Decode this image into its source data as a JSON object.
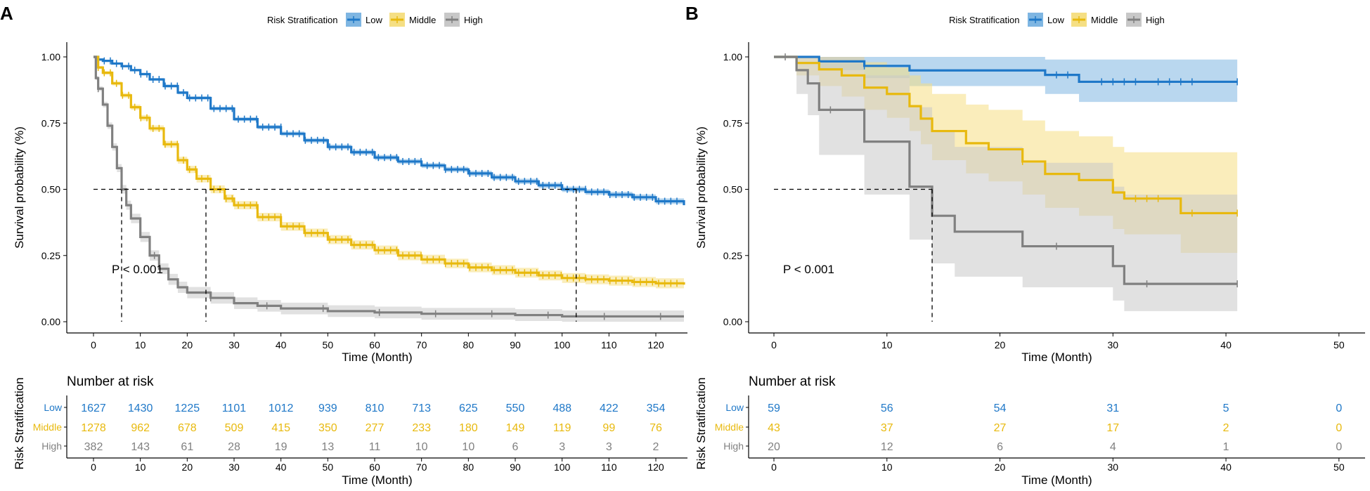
{
  "figure": {
    "legend_title": "Risk Stratification",
    "colors": {
      "Low": "#1f78c8",
      "Middle": "#e8b90e",
      "High": "#808080"
    },
    "ci_colors": {
      "Low": "#7fb6e2",
      "Middle": "#f5df84",
      "High": "#c8c8c8"
    }
  },
  "chart_data": [
    {
      "type": "line",
      "subtype": "kaplan-meier",
      "panel_label": "A",
      "legend_title": "Risk Stratification",
      "legend_position": "top",
      "xlabel": "Time (Month)",
      "ylabel": "Survival probability (%)",
      "xlim": [
        0,
        126
      ],
      "ylim": [
        0,
        1
      ],
      "x_ticks": [
        0,
        10,
        20,
        30,
        40,
        50,
        60,
        70,
        80,
        90,
        100,
        110,
        120
      ],
      "y_ticks": [
        0.0,
        0.25,
        0.5,
        0.75,
        1.0
      ],
      "y_tick_labels": [
        "0.00",
        "0.25",
        "0.50",
        "0.75",
        "1.00"
      ],
      "annotation": "P < 0.001",
      "median_line": {
        "y": 0.5,
        "x_end": 103,
        "medians": [
          6,
          24,
          103
        ]
      },
      "series": [
        {
          "name": "Low",
          "x": [
            0,
            1,
            2,
            4,
            6,
            8,
            10,
            12,
            15,
            18,
            20,
            25,
            30,
            35,
            40,
            45,
            50,
            55,
            60,
            65,
            70,
            75,
            80,
            85,
            90,
            95,
            100,
            105,
            110,
            115,
            120,
            126
          ],
          "y": [
            1,
            0.99,
            0.985,
            0.975,
            0.965,
            0.95,
            0.935,
            0.915,
            0.89,
            0.865,
            0.845,
            0.805,
            0.765,
            0.735,
            0.71,
            0.685,
            0.66,
            0.64,
            0.62,
            0.605,
            0.59,
            0.575,
            0.56,
            0.545,
            0.53,
            0.515,
            0.5,
            0.49,
            0.48,
            0.47,
            0.455,
            0.44
          ],
          "ci": 0.014
        },
        {
          "name": "Middle",
          "x": [
            0,
            1,
            2,
            4,
            6,
            8,
            10,
            12,
            15,
            18,
            20,
            22,
            25,
            28,
            30,
            35,
            40,
            45,
            50,
            55,
            60,
            65,
            70,
            75,
            80,
            85,
            90,
            95,
            100,
            105,
            110,
            115,
            120,
            126
          ],
          "y": [
            1,
            0.96,
            0.94,
            0.9,
            0.855,
            0.81,
            0.77,
            0.73,
            0.67,
            0.61,
            0.575,
            0.54,
            0.5,
            0.465,
            0.44,
            0.395,
            0.36,
            0.335,
            0.31,
            0.29,
            0.27,
            0.25,
            0.235,
            0.22,
            0.205,
            0.195,
            0.185,
            0.175,
            0.165,
            0.16,
            0.155,
            0.15,
            0.145,
            0.14
          ],
          "ci": 0.02
        },
        {
          "name": "High",
          "x": [
            0,
            0.5,
            1,
            2,
            3,
            4,
            5,
            6,
            7,
            8,
            10,
            12,
            14,
            16,
            18,
            20,
            25,
            30,
            35,
            40,
            50,
            60,
            70,
            80,
            90,
            100,
            110,
            120,
            126
          ],
          "y": [
            1,
            0.92,
            0.88,
            0.82,
            0.74,
            0.66,
            0.58,
            0.5,
            0.44,
            0.39,
            0.32,
            0.25,
            0.2,
            0.16,
            0.13,
            0.11,
            0.09,
            0.07,
            0.06,
            0.05,
            0.04,
            0.035,
            0.03,
            0.03,
            0.025,
            0.02,
            0.02,
            0.02,
            0.02
          ],
          "ci": 0.022
        }
      ],
      "risk_table": {
        "title": "Number at risk",
        "ylabel": "Risk Stratification",
        "xlabel": "Time (Month)",
        "times": [
          0,
          10,
          20,
          30,
          40,
          50,
          60,
          70,
          80,
          90,
          100,
          110,
          120
        ],
        "rows": [
          {
            "name": "Low",
            "values": [
              "1627",
              "1430",
              "1225",
              "1101",
              "1012",
              "939",
              "810",
              "713",
              "625",
              "550",
              "488",
              "422",
              "354"
            ]
          },
          {
            "name": "Middle",
            "values": [
              "1278",
              "962",
              "678",
              "509",
              "415",
              "350",
              "277",
              "233",
              "180",
              "149",
              "119",
              "99",
              "76"
            ]
          },
          {
            "name": "High",
            "values": [
              "382",
              "143",
              "61",
              "28",
              "19",
              "13",
              "11",
              "10",
              "10",
              "6",
              "3",
              "3",
              "2"
            ]
          }
        ]
      }
    },
    {
      "type": "line",
      "subtype": "kaplan-meier",
      "panel_label": "B",
      "legend_title": "Risk Stratification",
      "legend_position": "top",
      "xlabel": "Time (Month)",
      "ylabel": "Survival probability (%)",
      "xlim": [
        0,
        52
      ],
      "ylim": [
        0,
        1
      ],
      "x_ticks": [
        0,
        10,
        20,
        30,
        40,
        50
      ],
      "y_ticks": [
        0.0,
        0.25,
        0.5,
        0.75,
        1.0
      ],
      "y_tick_labels": [
        "0.00",
        "0.25",
        "0.50",
        "0.75",
        "1.00"
      ],
      "annotation": "P < 0.001",
      "median_line": {
        "y": 0.5,
        "x_end": 14,
        "medians": [
          14
        ]
      },
      "series": [
        {
          "name": "Low",
          "x": [
            0,
            4,
            8,
            12,
            24,
            27,
            41
          ],
          "y": [
            1,
            0.983,
            0.966,
            0.949,
            0.932,
            0.906,
            0.906
          ],
          "lower": [
            1,
            0.95,
            0.92,
            0.89,
            0.86,
            0.83,
            0.83
          ],
          "upper": [
            1,
            1,
            1,
            1,
            0.99,
            0.99,
            0.99
          ],
          "censors": [
            8,
            25,
            26,
            29,
            30,
            31,
            32,
            34,
            35,
            36,
            37,
            41
          ]
        },
        {
          "name": "Middle",
          "x": [
            0,
            2,
            4,
            6,
            8,
            10,
            12,
            13,
            14,
            17,
            19,
            22,
            24,
            27,
            30,
            31,
            36,
            41
          ],
          "y": [
            1,
            0.977,
            0.953,
            0.93,
            0.884,
            0.86,
            0.814,
            0.767,
            0.72,
            0.674,
            0.651,
            0.605,
            0.558,
            0.535,
            0.488,
            0.465,
            0.41,
            0.41
          ],
          "lower": [
            1,
            0.93,
            0.89,
            0.85,
            0.8,
            0.77,
            0.72,
            0.67,
            0.61,
            0.56,
            0.53,
            0.48,
            0.43,
            0.4,
            0.35,
            0.33,
            0.26,
            0.26
          ],
          "upper": [
            1,
            1,
            1,
            1,
            0.98,
            0.96,
            0.93,
            0.9,
            0.86,
            0.82,
            0.8,
            0.76,
            0.72,
            0.7,
            0.66,
            0.64,
            0.64,
            0.64
          ],
          "censors": [
            22,
            32,
            33,
            34,
            37,
            41
          ]
        },
        {
          "name": "High",
          "x": [
            0,
            2,
            3,
            4,
            8,
            12,
            14,
            16,
            22,
            30,
            31,
            41
          ],
          "y": [
            1,
            0.95,
            0.9,
            0.8,
            0.68,
            0.51,
            0.4,
            0.34,
            0.285,
            0.21,
            0.143,
            0.143
          ],
          "lower": [
            1,
            0.86,
            0.78,
            0.63,
            0.48,
            0.31,
            0.22,
            0.17,
            0.13,
            0.08,
            0.04,
            0.04
          ],
          "upper": [
            1,
            1,
            1,
            1,
            0.93,
            0.81,
            0.72,
            0.66,
            0.6,
            0.51,
            0.48,
            0.48
          ],
          "censors": [
            1,
            5,
            25,
            33,
            41
          ]
        }
      ],
      "risk_table": {
        "title": "Number at risk",
        "ylabel": "Risk Stratification",
        "xlabel": "Time (Month)",
        "times": [
          0,
          10,
          20,
          30,
          40,
          50
        ],
        "rows": [
          {
            "name": "Low",
            "values": [
              "59",
              "56",
              "54",
              "31",
              "5",
              "0"
            ]
          },
          {
            "name": "Middle",
            "values": [
              "43",
              "37",
              "27",
              "17",
              "2",
              "0"
            ]
          },
          {
            "name": "High",
            "values": [
              "20",
              "12",
              "6",
              "4",
              "1",
              "0"
            ]
          }
        ]
      }
    }
  ]
}
